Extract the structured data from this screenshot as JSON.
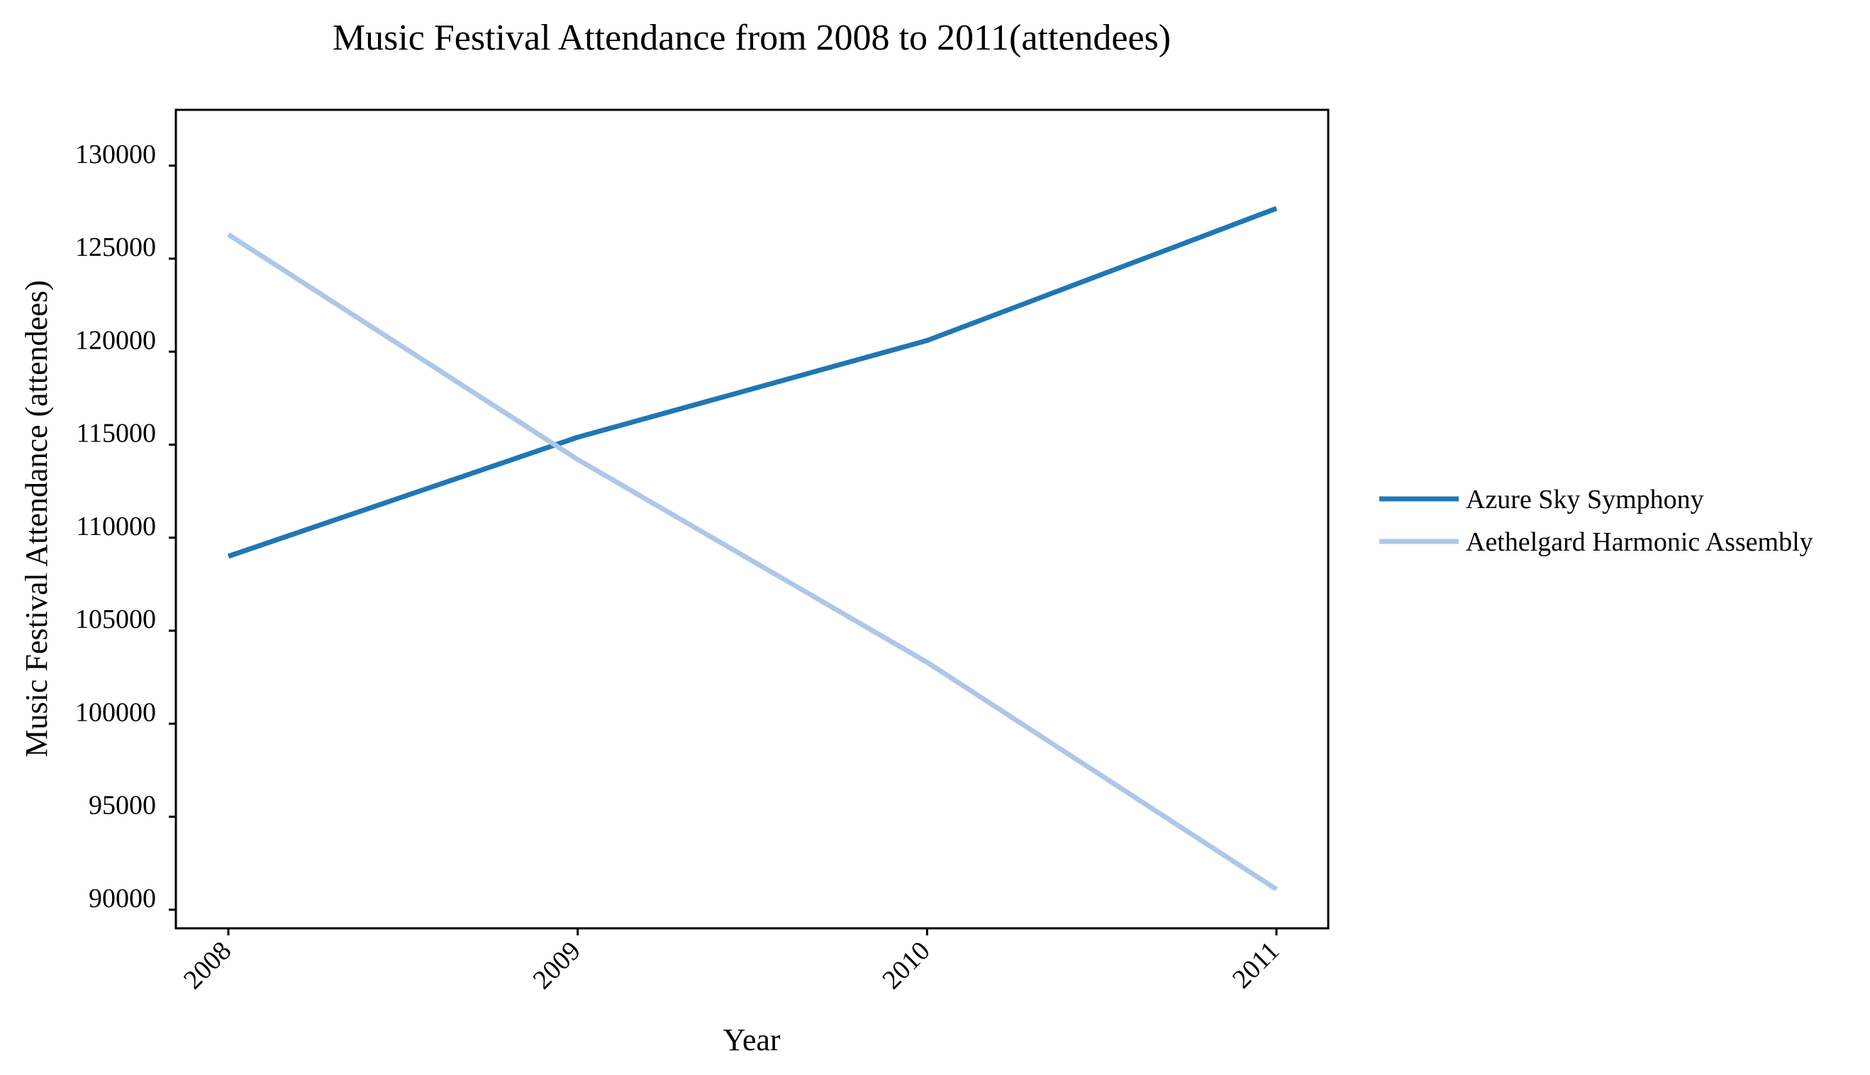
{
  "chart_data": {
    "type": "line",
    "title": "Music Festival Attendance from 2008 to 2011(attendees)",
    "xlabel": "Year",
    "ylabel": "Music Festival Attendance (attendees)",
    "categories": [
      "2008",
      "2009",
      "2010",
      "2011"
    ],
    "ylim": [
      89000,
      133000
    ],
    "yticks": [
      90000,
      95000,
      100000,
      105000,
      110000,
      115000,
      120000,
      125000,
      130000
    ],
    "grid": false,
    "legend_position": "right",
    "series": [
      {
        "name": "Azure Sky Symphony",
        "color": "#1f77b4",
        "values": [
          109000,
          115400,
          120600,
          127700
        ]
      },
      {
        "name": "Aethelgard Harmonic Assembly",
        "color": "#aec7e8",
        "values": [
          126300,
          114200,
          103300,
          91100
        ]
      }
    ]
  }
}
